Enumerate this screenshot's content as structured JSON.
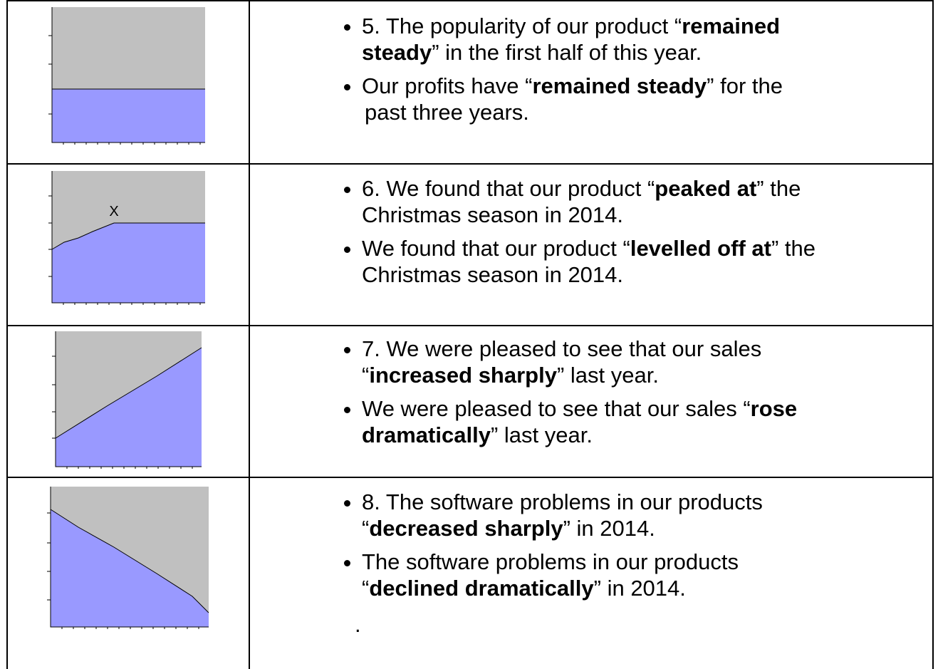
{
  "rows": [
    {
      "bullets": [
        [
          [
            {
              "text": "5. The popularity of our product “"
            },
            {
              "text": "remained",
              "bold": true
            }
          ],
          [
            {
              "text": "steady",
              "bold": true
            },
            {
              "text": "” in the first half of this year."
            }
          ]
        ],
        [
          [
            {
              "text": "Our profits have “"
            },
            {
              "text": "remained steady",
              "bold": true
            },
            {
              "text": "” for the"
            }
          ],
          [
            {
              "text": "past three years."
            }
          ]
        ]
      ]
    },
    {
      "chart_label": "X",
      "bullets": [
        [
          [
            {
              "text": "6. We found that our product “"
            },
            {
              "text": "peaked at",
              "bold": true
            },
            {
              "text": "” the"
            }
          ],
          [
            {
              "text": "Christmas season in 2014."
            }
          ]
        ],
        [
          [
            {
              "text": "We found that our product “"
            },
            {
              "text": "levelled off at",
              "bold": true
            },
            {
              "text": "” the"
            }
          ],
          [
            {
              "text": "Christmas season in 2014."
            }
          ]
        ]
      ]
    },
    {
      "bullets": [
        [
          [
            {
              "text": "7. We were pleased to see that our sales"
            }
          ],
          [
            {
              "text": "“"
            },
            {
              "text": "increased sharply",
              "bold": true
            },
            {
              "text": "” last year."
            }
          ]
        ],
        [
          [
            {
              "text": "We were pleased to see that our sales “"
            },
            {
              "text": "rose",
              "bold": true
            }
          ],
          [
            {
              "text": "dramatically",
              "bold": true
            },
            {
              "text": "” last year."
            }
          ]
        ]
      ]
    },
    {
      "note": ".",
      "bullets": [
        [
          [
            {
              "text": "8. The software problems in our products"
            }
          ],
          [
            {
              "text": "“"
            },
            {
              "text": "decreased sharply",
              "bold": true
            },
            {
              "text": "” in 2014."
            }
          ]
        ],
        [
          [
            {
              "text": "The software problems in our products"
            }
          ],
          [
            {
              "text": "“"
            },
            {
              "text": "declined dramatically",
              "bold": true
            },
            {
              "text": "” in 2014."
            }
          ]
        ]
      ]
    }
  ]
}
